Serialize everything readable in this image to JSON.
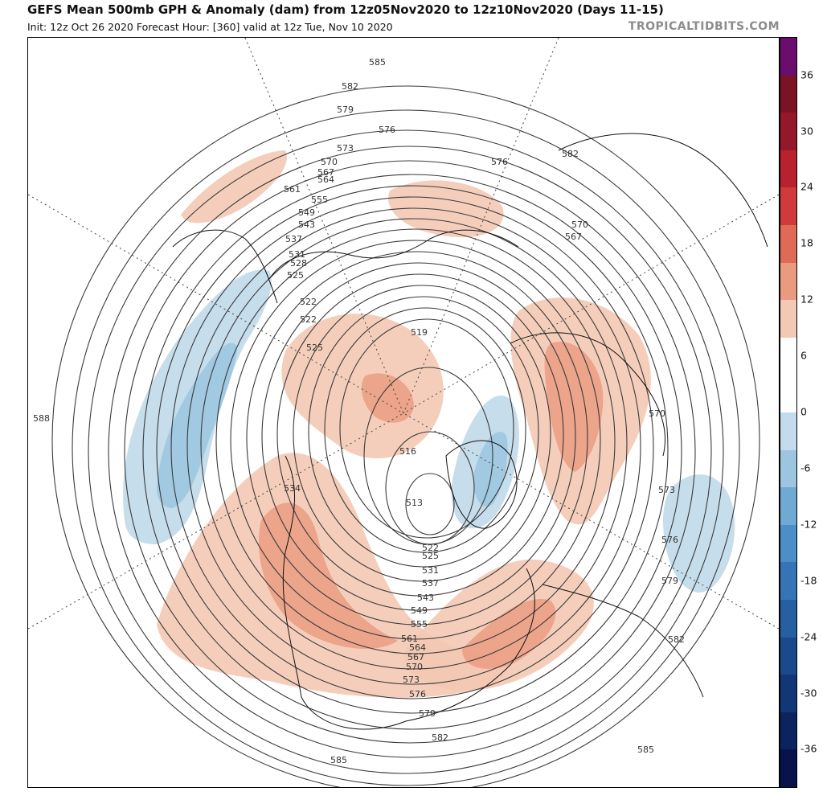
{
  "header": {
    "title": "GEFS Mean 500mb GPH & Anomaly (dam) from 12z05Nov2020 to 12z10Nov2020 (Days 11-15)",
    "subtitle": "Init: 12z Oct 26 2020   Forecast Hour: [360]   valid at 12z Tue, Nov 10 2020",
    "brand": "TROPICALTIDBITS.COM"
  },
  "colorbar": {
    "ticks": [
      "36",
      "30",
      "24",
      "18",
      "12",
      "6",
      "0",
      "-6",
      "-12",
      "-18",
      "-24",
      "-30",
      "-36"
    ],
    "colors": [
      "#6b0d6e",
      "#7a1424",
      "#94172a",
      "#b8222f",
      "#d03a3a",
      "#df6a55",
      "#ea9a7f",
      "#f4c9b4",
      "#ffffff",
      "#ffffff",
      "#c3dbea",
      "#9cc6e0",
      "#6fa9d4",
      "#4c8fc6",
      "#3574b6",
      "#2660a3",
      "#1b4a8c",
      "#123777",
      "#0b235e",
      "#07134a"
    ]
  },
  "contour_labels": [
    "585",
    "582",
    "579",
    "576",
    "573",
    "570",
    "567",
    "564",
    "561",
    "555",
    "549",
    "543",
    "537",
    "531",
    "528",
    "525",
    "522",
    "522",
    "525",
    "519",
    "516",
    "513",
    "522",
    "525",
    "531",
    "537",
    "543",
    "549",
    "555",
    "561",
    "564",
    "567",
    "570",
    "573",
    "576",
    "579",
    "582",
    "585",
    "576",
    "582",
    "570",
    "567",
    "570",
    "573",
    "576",
    "579",
    "582",
    "585",
    "534",
    "588"
  ],
  "anomaly_regions": [
    {
      "name": "western-north-america-warm",
      "sign": "positive"
    },
    {
      "name": "eastern-north-america-warm",
      "sign": "positive"
    },
    {
      "name": "arctic-warm",
      "sign": "positive"
    },
    {
      "name": "eastern-europe-warm",
      "sign": "positive"
    },
    {
      "name": "siberia-warm",
      "sign": "positive"
    },
    {
      "name": "north-pacific-cold",
      "sign": "negative"
    },
    {
      "name": "greenland-cold",
      "sign": "negative"
    },
    {
      "name": "north-africa-cold",
      "sign": "negative"
    }
  ]
}
